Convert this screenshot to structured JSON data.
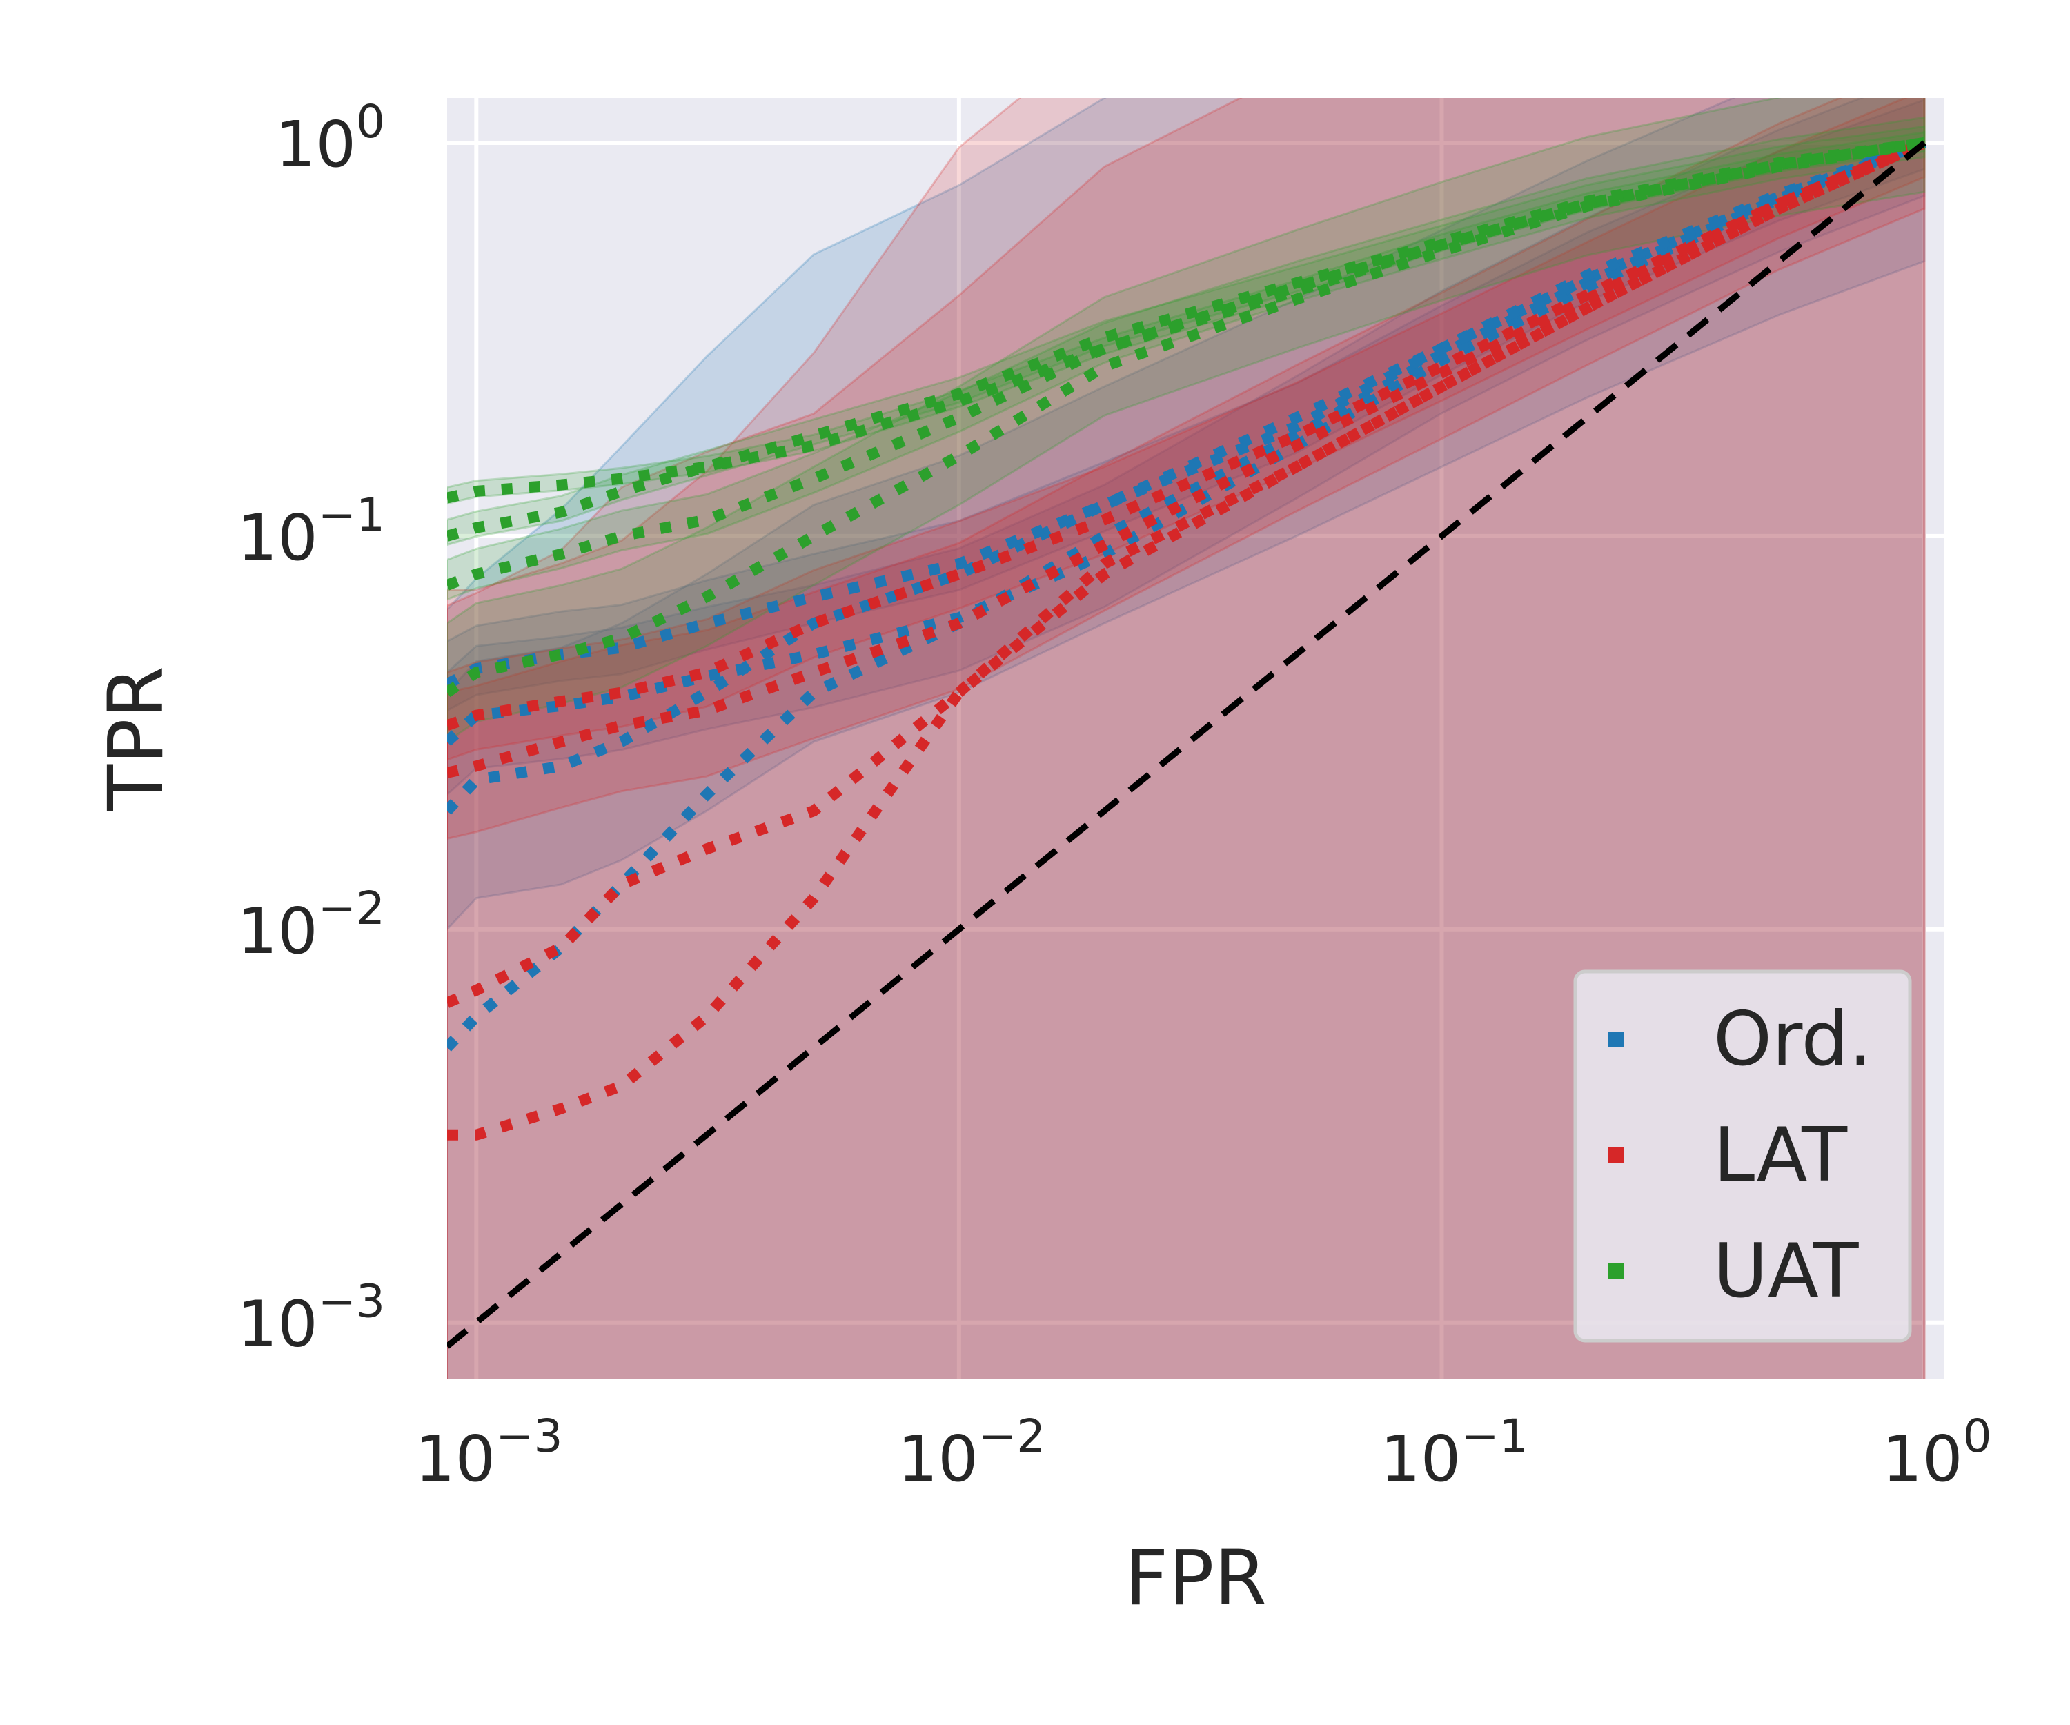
{
  "chart_data": {
    "type": "line",
    "xlabel": "FPR",
    "ylabel": "TPR",
    "xscale": "log",
    "yscale": "log",
    "xlim": [
      0.00087,
      1.1
    ],
    "ylim": [
      0.00072,
      1.3
    ],
    "x_ticks": [
      {
        "value": 0.001,
        "base": "10",
        "exp": "−3"
      },
      {
        "value": 0.01,
        "base": "10",
        "exp": "−2"
      },
      {
        "value": 0.1,
        "base": "10",
        "exp": "−1"
      },
      {
        "value": 1,
        "base": "10",
        "exp": "0"
      }
    ],
    "y_ticks": [
      {
        "value": 0.001,
        "base": "10",
        "exp": "−3"
      },
      {
        "value": 0.01,
        "base": "10",
        "exp": "−2"
      },
      {
        "value": 0.1,
        "base": "10",
        "exp": "−1"
      },
      {
        "value": 1,
        "base": "10",
        "exp": "0"
      }
    ],
    "grid": true,
    "legend_position": "lower-right",
    "line_style": "dotted",
    "reference_line": {
      "style": "dashed",
      "color": "#000000",
      "x": [
        0.00087,
        1
      ],
      "y": [
        0.00087,
        1
      ]
    },
    "series": [
      {
        "name": "Ord.",
        "color": "#1f77b4",
        "runs": [
          {
            "x": [
              0.00087,
              0.001,
              0.0015,
              0.002,
              0.003,
              0.005,
              0.01,
              0.02,
              0.05,
              0.1,
              0.2,
              0.5,
              1
            ],
            "y": [
              0.03,
              0.035,
              0.037,
              0.039,
              0.044,
              0.05,
              0.062,
              0.09,
              0.17,
              0.28,
              0.43,
              0.72,
              1
            ],
            "band": [
              0.015,
              0.008
            ]
          },
          {
            "x": [
              0.00087,
              0.001,
              0.0015,
              0.002,
              0.003,
              0.005,
              0.01,
              0.02,
              0.05,
              0.1,
              0.2,
              0.5,
              1
            ],
            "y": [
              0.02,
              0.024,
              0.026,
              0.03,
              0.04,
              0.06,
              0.08,
              0.12,
              0.2,
              0.3,
              0.45,
              0.73,
              1
            ],
            "band": [
              0.02,
              0.01
            ]
          },
          {
            "x": [
              0.00087,
              0.001,
              0.0015,
              0.002,
              0.003,
              0.005,
              0.01,
              0.02,
              0.05,
              0.1,
              0.2,
              0.5,
              1
            ],
            "y": [
              0.005,
              0.006,
              0.009,
              0.013,
              0.022,
              0.04,
              0.06,
              0.1,
              0.18,
              0.29,
              0.44,
              0.72,
              1
            ],
            "band": [
              0.06,
              0.03
            ]
          },
          {
            "x": [
              0.00087,
              0.001,
              0.0015,
              0.002,
              0.003,
              0.005,
              0.01,
              0.02,
              0.05,
              0.1,
              0.2,
              0.5,
              1
            ],
            "y": [
              0.042,
              0.046,
              0.05,
              0.052,
              0.06,
              0.07,
              0.085,
              0.12,
              0.19,
              0.3,
              0.46,
              0.74,
              1
            ],
            "band": [
              0.012,
              0.006
            ]
          }
        ]
      },
      {
        "name": "LAT",
        "color": "#d62728",
        "runs": [
          {
            "x": [
              0.00087,
              0.001,
              0.0015,
              0.002,
              0.003,
              0.005,
              0.01,
              0.02,
              0.05,
              0.1,
              0.2,
              0.5,
              1
            ],
            "y": [
              0.003,
              0.003,
              0.0035,
              0.004,
              0.006,
              0.012,
              0.04,
              0.08,
              0.15,
              0.24,
              0.38,
              0.68,
              1
            ],
            "band": [
              0.07,
              0.03
            ]
          },
          {
            "x": [
              0.00087,
              0.001,
              0.0015,
              0.002,
              0.003,
              0.005,
              0.01,
              0.02,
              0.05,
              0.1,
              0.2,
              0.5,
              1
            ],
            "y": [
              0.0065,
              0.007,
              0.009,
              0.013,
              0.016,
              0.02,
              0.04,
              0.085,
              0.15,
              0.24,
              0.38,
              0.68,
              1
            ],
            "band": [
              0.06,
              0.03
            ]
          },
          {
            "x": [
              0.00087,
              0.001,
              0.0015,
              0.002,
              0.003,
              0.005,
              0.01,
              0.02,
              0.05,
              0.1,
              0.2,
              0.5,
              1
            ],
            "y": [
              0.025,
              0.026,
              0.03,
              0.033,
              0.036,
              0.045,
              0.06,
              0.095,
              0.17,
              0.26,
              0.4,
              0.7,
              1
            ],
            "band": [
              0.015,
              0.008
            ]
          },
          {
            "x": [
              0.00087,
              0.001,
              0.0015,
              0.002,
              0.003,
              0.005,
              0.01,
              0.02,
              0.05,
              0.1,
              0.2,
              0.5,
              1
            ],
            "y": [
              0.033,
              0.035,
              0.038,
              0.04,
              0.045,
              0.06,
              0.08,
              0.11,
              0.18,
              0.27,
              0.41,
              0.7,
              1
            ],
            "band": [
              0.012,
              0.006
            ]
          }
        ]
      },
      {
        "name": "UAT",
        "color": "#2ca02c",
        "runs": [
          {
            "x": [
              0.00087,
              0.001,
              0.0015,
              0.002,
              0.003,
              0.005,
              0.01,
              0.02,
              0.05,
              0.1,
              0.2,
              0.5,
              1
            ],
            "y": [
              0.125,
              0.13,
              0.135,
              0.14,
              0.15,
              0.17,
              0.22,
              0.3,
              0.42,
              0.55,
              0.7,
              0.88,
              1
            ],
            "band": [
              0.008,
              0.004
            ]
          },
          {
            "x": [
              0.00087,
              0.001,
              0.0015,
              0.002,
              0.003,
              0.005,
              0.01,
              0.02,
              0.05,
              0.1,
              0.2,
              0.5,
              1
            ],
            "y": [
              0.1,
              0.105,
              0.115,
              0.13,
              0.15,
              0.18,
              0.23,
              0.32,
              0.44,
              0.56,
              0.71,
              0.89,
              1
            ],
            "band": [
              0.01,
              0.005
            ]
          },
          {
            "x": [
              0.00087,
              0.001,
              0.0015,
              0.002,
              0.003,
              0.005,
              0.01,
              0.02,
              0.05,
              0.1,
              0.2,
              0.5,
              1
            ],
            "y": [
              0.075,
              0.08,
              0.09,
              0.1,
              0.11,
              0.14,
              0.2,
              0.3,
              0.43,
              0.55,
              0.7,
              0.88,
              1
            ],
            "band": [
              0.012,
              0.006
            ]
          },
          {
            "x": [
              0.00087,
              0.001,
              0.0015,
              0.002,
              0.003,
              0.005,
              0.01,
              0.02,
              0.05,
              0.1,
              0.2,
              0.5,
              1
            ],
            "y": [
              0.04,
              0.045,
              0.05,
              0.055,
              0.07,
              0.1,
              0.16,
              0.27,
              0.4,
              0.53,
              0.69,
              0.87,
              1
            ],
            "band": [
              0.02,
              0.01
            ]
          }
        ]
      }
    ]
  }
}
